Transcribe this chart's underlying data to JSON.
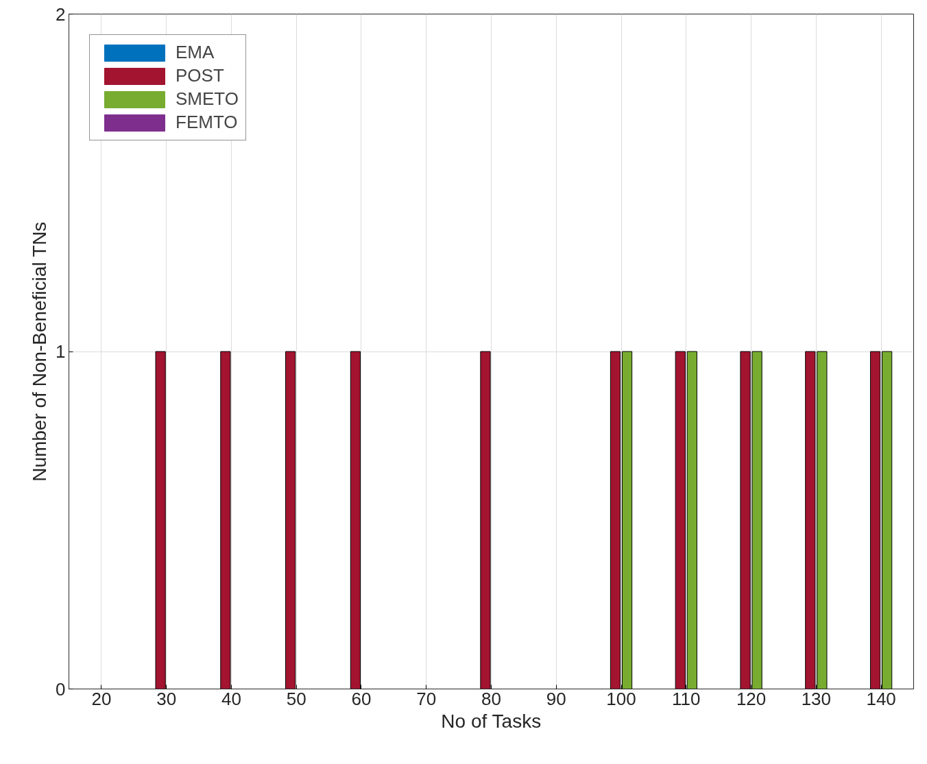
{
  "chart_data": {
    "type": "bar",
    "xlabel": "No of Tasks",
    "ylabel": "Number of Non-Beneficial TNs",
    "categories": [
      "20",
      "30",
      "40",
      "50",
      "60",
      "70",
      "80",
      "90",
      "100",
      "110",
      "120",
      "130",
      "140"
    ],
    "series": [
      {
        "name": "EMA",
        "color": "#0072bd",
        "values": [
          0,
          0,
          0,
          0,
          0,
          0,
          0,
          0,
          0,
          0,
          0,
          0,
          0
        ]
      },
      {
        "name": "POST",
        "color": "#a2142f",
        "values": [
          0,
          1,
          1,
          1,
          1,
          0,
          1,
          0,
          1,
          1,
          1,
          1,
          1
        ]
      },
      {
        "name": "SMETO",
        "color": "#77ac30",
        "values": [
          0,
          0,
          0,
          0,
          0,
          0,
          0,
          0,
          1,
          1,
          1,
          1,
          1
        ]
      },
      {
        "name": "FEMTO",
        "color": "#7e2f8e",
        "values": [
          0,
          0,
          0,
          0,
          0,
          0,
          0,
          0,
          0,
          0,
          0,
          0,
          0
        ]
      }
    ],
    "ylim": [
      0,
      2
    ],
    "yticks": [
      0,
      1,
      2
    ],
    "grid": true,
    "legend": "top left"
  }
}
